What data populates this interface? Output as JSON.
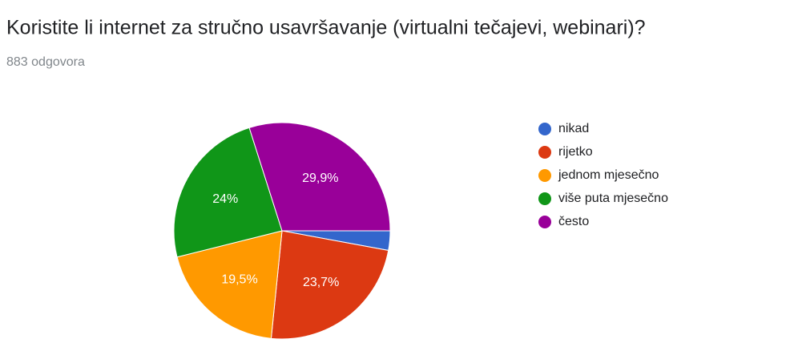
{
  "chart_data": {
    "type": "pie",
    "title": "Koristite li internet za stručno usavršavanje (virtualni tečajevi, webinari)?",
    "subtitle": "883 odgovora",
    "categories": [
      "nikad",
      "rijetko",
      "jednom mjesečno",
      "više puta mjesečno",
      "često"
    ],
    "values": [
      2.9,
      23.7,
      19.5,
      24,
      29.9
    ],
    "value_labels": [
      null,
      "23,7%",
      "19,5%",
      "24%",
      "29,9%"
    ],
    "colors": [
      "#3366cc",
      "#dc3912",
      "#ff9900",
      "#109618",
      "#990099"
    ],
    "legend": "right"
  }
}
